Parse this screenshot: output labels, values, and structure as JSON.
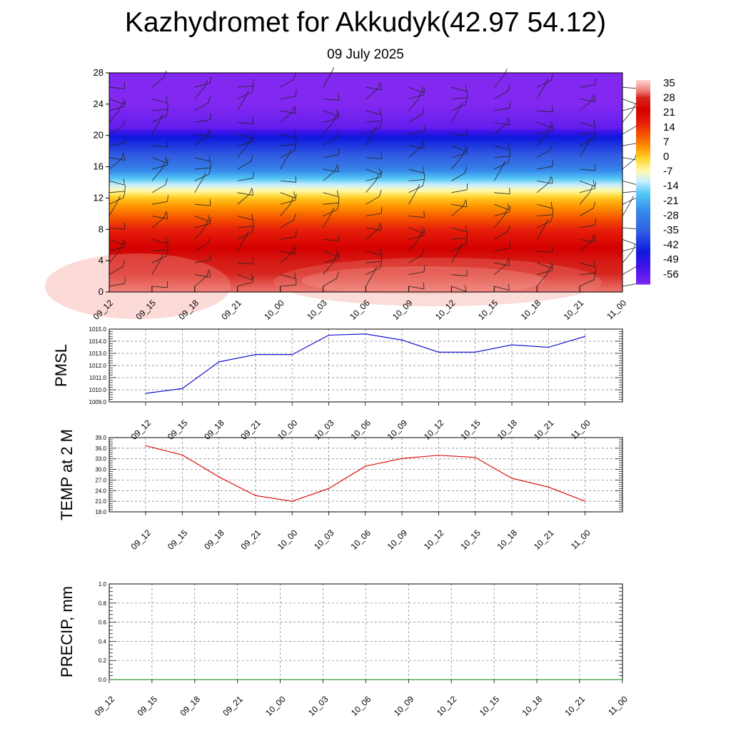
{
  "title": "Kazhydromet for Akkudyk(42.97 54.12)",
  "subtitle": "09 July 2025",
  "chart_data": [
    {
      "type": "heatmap",
      "title": "",
      "ylabel": "",
      "ylim": [
        0,
        28
      ],
      "yticks": [
        0,
        4,
        8,
        12,
        16,
        20,
        24,
        28
      ],
      "x_ticklabels": [
        "09_12",
        "09_15",
        "09_18",
        "09_21",
        "10_00",
        "10_03",
        "10_06",
        "10_09",
        "10_12",
        "10_15",
        "10_18",
        "10_21",
        "11_00"
      ],
      "colorbar_labels": [
        "35",
        "28",
        "21",
        "14",
        "7",
        "0",
        "-7",
        "-14",
        "-21",
        "-28",
        "-35",
        "-42",
        "-49",
        "-56"
      ],
      "colorbar_range": [
        -60,
        38
      ],
      "temperature_profile": [
        {
          "level": 0,
          "value": 33
        },
        {
          "level": 4,
          "value": 28
        },
        {
          "level": 8,
          "value": 18
        },
        {
          "level": 12,
          "value": 2
        },
        {
          "level": 14,
          "value": -12
        },
        {
          "level": 16,
          "value": -28
        },
        {
          "level": 20,
          "value": -45
        },
        {
          "level": 21,
          "value": -56
        },
        {
          "level": 24,
          "value": -60
        },
        {
          "level": 28,
          "value": -60
        }
      ],
      "wind_barbs": "shown",
      "grid": false
    },
    {
      "type": "line",
      "ylabel": "PMSL",
      "ylim": [
        1009.0,
        1015.0
      ],
      "yticks": [
        "1009.0",
        "1010.0",
        "1011.0",
        "1012.0",
        "1013.0",
        "1014.0",
        "1015.0"
      ],
      "x": [
        "09_12",
        "09_15",
        "09_18",
        "09_21",
        "10_00",
        "10_03",
        "10_06",
        "10_09",
        "10_12",
        "10_15",
        "10_18",
        "10_21",
        "11_00"
      ],
      "series": [
        {
          "values": [
            1009.7,
            1010.1,
            1012.3,
            1012.9,
            1012.9,
            1014.5,
            1014.6,
            1014.1,
            1013.1,
            1013.1,
            1013.7,
            1013.5,
            1014.4
          ],
          "color": "#0000cc"
        }
      ],
      "grid": true
    },
    {
      "type": "line",
      "ylabel": "TEMP at 2 M",
      "ylim": [
        18.0,
        39.0
      ],
      "yticks": [
        "18.0",
        "21.0",
        "24.0",
        "27.0",
        "30.0",
        "33.0",
        "36.0",
        "39.0"
      ],
      "x": [
        "09_12",
        "09_15",
        "09_18",
        "09_21",
        "10_00",
        "10_03",
        "10_06",
        "10_09",
        "10_12",
        "10_15",
        "10_18",
        "10_21",
        "11_00"
      ],
      "series": [
        {
          "values": [
            36.7,
            34.1,
            27.9,
            22.6,
            21.0,
            24.6,
            30.9,
            33.1,
            34.0,
            33.4,
            27.5,
            25.0,
            21.0
          ],
          "color": "#dd0000"
        }
      ],
      "grid": true
    },
    {
      "type": "line",
      "ylabel": "PRECIP, mm",
      "ylim": [
        0.0,
        1.0
      ],
      "yticks": [
        "0.0",
        "0.2",
        "0.4",
        "0.6",
        "0.8",
        "1.0"
      ],
      "x": [
        "09_12",
        "09_15",
        "09_18",
        "09_21",
        "10_00",
        "10_03",
        "10_06",
        "10_09",
        "10_12",
        "10_15",
        "10_18",
        "10_21",
        "11_00"
      ],
      "series": [
        {
          "values": [
            0,
            0,
            0,
            0,
            0,
            0,
            0,
            0,
            0,
            0,
            0,
            0,
            0
          ],
          "color": "#007700"
        }
      ],
      "grid": true
    }
  ],
  "colors": {
    "pmsl_line": "#0000cc",
    "temp_line": "#dd0000",
    "precip_line": "#007700"
  }
}
